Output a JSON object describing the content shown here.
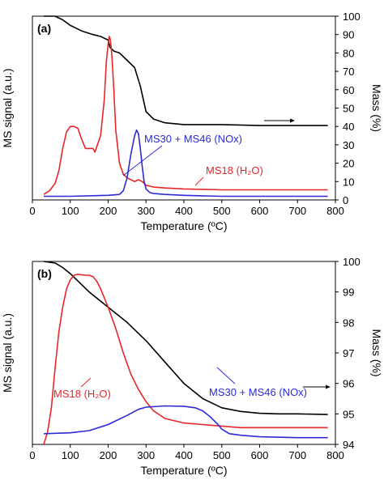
{
  "chart_data": [
    {
      "type": "line",
      "panel_label": "(a)",
      "xlabel": "Temperature (ºC)",
      "ylabel_left": "MS signal (a.u.)",
      "ylabel_right": "Mass (%)",
      "xlim": [
        0,
        800
      ],
      "x_ticks": [
        "0",
        "100",
        "200",
        "300",
        "400",
        "500",
        "600",
        "700",
        "800"
      ],
      "ylim_right": [
        0,
        100
      ],
      "y_ticks_right": [
        "0",
        "10",
        "20",
        "30",
        "40",
        "50",
        "60",
        "70",
        "80",
        "90",
        "100"
      ],
      "left_axis_ticks": "none",
      "series": [
        {
          "name": "Mass",
          "axis": "right",
          "color": "#000000",
          "x": [
            30,
            60,
            80,
            100,
            130,
            160,
            180,
            200,
            205,
            215,
            230,
            250,
            270,
            285,
            300,
            320,
            350,
            400,
            500,
            600,
            700,
            780
          ],
          "y": [
            100,
            100,
            98,
            95,
            92,
            90,
            89,
            87,
            83,
            81,
            80,
            76,
            72,
            62,
            48,
            44,
            42,
            41,
            41,
            40.5,
            40.5,
            40.5
          ]
        },
        {
          "name": "MS18 (H₂O)",
          "axis": "right",
          "color": "#e8262a",
          "x": [
            30,
            45,
            60,
            70,
            80,
            90,
            100,
            110,
            120,
            130,
            140,
            150,
            160,
            165,
            170,
            180,
            190,
            195,
            200,
            203,
            206,
            210,
            215,
            220,
            230,
            240,
            250,
            260,
            270,
            280,
            290,
            300,
            320,
            350,
            400,
            500,
            600,
            700,
            780
          ],
          "y": [
            3,
            5,
            9,
            16,
            28,
            37,
            40,
            40,
            39,
            33,
            28,
            28,
            28,
            26,
            29,
            35,
            55,
            75,
            85,
            89,
            87,
            78,
            60,
            38,
            20,
            14,
            12,
            11,
            10,
            11,
            10,
            8,
            7,
            6.5,
            6,
            5.5,
            5.5,
            5.5,
            5.5
          ]
        },
        {
          "name": "MS30 + MS46 (NOx)",
          "axis": "right",
          "color": "#2b2bd6",
          "x": [
            30,
            100,
            200,
            230,
            240,
            250,
            260,
            270,
            275,
            280,
            285,
            290,
            295,
            300,
            310,
            320,
            350,
            400,
            500,
            600,
            700,
            780
          ],
          "y": [
            2,
            2,
            2.5,
            3,
            5,
            12,
            25,
            35,
            38,
            36,
            28,
            18,
            10,
            6,
            4,
            3.5,
            3,
            2.5,
            2,
            2,
            2,
            2
          ]
        }
      ],
      "annotations": [
        "MS30 + MS46 (NOx)",
        "MS18 (H₂O)"
      ]
    },
    {
      "type": "line",
      "panel_label": "(b)",
      "xlabel": "Temperature (ºC)",
      "ylabel_left": "MS signal (a.u.)",
      "ylabel_right": "Mass (%)",
      "xlim": [
        0,
        800
      ],
      "x_ticks": [
        "0",
        "100",
        "200",
        "300",
        "400",
        "500",
        "600",
        "700",
        "800"
      ],
      "ylim_right": [
        94,
        100
      ],
      "y_ticks_right": [
        "94",
        "95",
        "96",
        "97",
        "98",
        "99",
        "100"
      ],
      "left_axis_ticks": "none",
      "series": [
        {
          "name": "Mass",
          "axis": "right",
          "color": "#000000",
          "x": [
            30,
            60,
            80,
            100,
            150,
            200,
            250,
            300,
            350,
            400,
            450,
            500,
            550,
            600,
            650,
            700,
            780
          ],
          "y": [
            100,
            99.95,
            99.8,
            99.6,
            99.0,
            98.5,
            98.0,
            97.4,
            96.7,
            96.0,
            95.5,
            95.2,
            95.08,
            95.02,
            95.0,
            95.0,
            94.98
          ]
        },
        {
          "name": "MS18 (H₂O)",
          "axis": "right",
          "color": "#e8262a",
          "x": [
            30,
            40,
            50,
            60,
            70,
            80,
            90,
            100,
            110,
            120,
            130,
            140,
            150,
            160,
            170,
            180,
            200,
            220,
            240,
            260,
            280,
            300,
            320,
            350,
            400,
            450,
            500,
            550,
            600,
            700,
            780
          ],
          "y": [
            94,
            94.4,
            95.2,
            96.5,
            97.7,
            98.5,
            99.1,
            99.4,
            99.55,
            99.58,
            99.56,
            99.55,
            99.55,
            99.5,
            99.35,
            99.1,
            98.5,
            97.8,
            97.0,
            96.3,
            95.8,
            95.4,
            95.1,
            94.85,
            94.7,
            94.65,
            94.6,
            94.55,
            94.55,
            94.55,
            94.55
          ]
        },
        {
          "name": "MS30 + MS46 (NOx)",
          "axis": "right",
          "color": "#2b2bd6",
          "x": [
            30,
            100,
            150,
            200,
            250,
            280,
            300,
            350,
            400,
            430,
            450,
            470,
            490,
            500,
            520,
            550,
            600,
            700,
            780
          ],
          "y": [
            94.35,
            94.38,
            94.45,
            94.65,
            94.95,
            95.15,
            95.22,
            95.26,
            95.25,
            95.2,
            95.1,
            94.9,
            94.65,
            94.5,
            94.35,
            94.3,
            94.25,
            94.22,
            94.22
          ]
        }
      ],
      "annotations": [
        "MS18 (H₂O)",
        "MS30 + MS46 (NOx)"
      ]
    }
  ]
}
